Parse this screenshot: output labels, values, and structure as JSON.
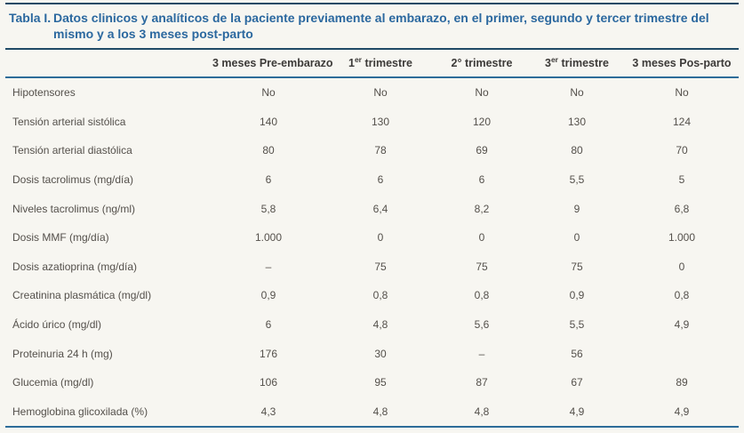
{
  "table": {
    "label": "Tabla I.",
    "title": "Datos clinicos y analíticos de la paciente previamente al embarazo, en el primer, segundo y tercer trimestre del mismo y a los 3 meses post-parto",
    "corner_header": "",
    "columns": [
      {
        "pre": "3 meses Pre-embarazo",
        "sup": "",
        "post": ""
      },
      {
        "pre": "1",
        "sup": "er",
        "post": " trimestre"
      },
      {
        "pre": "2°",
        "sup": "",
        "post": " trimestre"
      },
      {
        "pre": "3",
        "sup": "er",
        "post": " trimestre"
      },
      {
        "pre": "3 meses Pos-parto",
        "sup": "",
        "post": ""
      }
    ],
    "rows": [
      {
        "label": "Hipotensores",
        "values": [
          "No",
          "No",
          "No",
          "No",
          "No"
        ]
      },
      {
        "label": "Tensión arterial sistólica",
        "values": [
          "140",
          "130",
          "120",
          "130",
          "124"
        ]
      },
      {
        "label": "Tensión arterial diastólica",
        "values": [
          "80",
          "78",
          "69",
          "80",
          "70"
        ]
      },
      {
        "label": "Dosis tacrolimus (mg/día)",
        "values": [
          "6",
          "6",
          "6",
          "5,5",
          "5"
        ]
      },
      {
        "label": "Niveles tacrolimus (ng/ml)",
        "values": [
          "5,8",
          "6,4",
          "8,2",
          "9",
          "6,8"
        ]
      },
      {
        "label": "Dosis MMF (mg/día)",
        "values": [
          "1.000",
          "0",
          "0",
          "0",
          "1.000"
        ]
      },
      {
        "label": "Dosis azatioprina (mg/día)",
        "values": [
          "–",
          "75",
          "75",
          "75",
          "0"
        ]
      },
      {
        "label": "Creatinina plasmática (mg/dl)",
        "values": [
          "0,9",
          "0,8",
          "0,8",
          "0,9",
          "0,8"
        ]
      },
      {
        "label": "Ácido úrico (mg/dl)",
        "values": [
          "6",
          "4,8",
          "5,6",
          "5,5",
          "4,9"
        ]
      },
      {
        "label": "Proteinuria 24 h (mg)",
        "values": [
          "176",
          "30",
          "–",
          "56",
          ""
        ]
      },
      {
        "label": "Glucemia (mg/dl)",
        "values": [
          "106",
          "95",
          "87",
          "67",
          "89"
        ]
      },
      {
        "label": "Hemoglobina glicoxilada (%)",
        "values": [
          "4,3",
          "4,8",
          "4,8",
          "4,9",
          "4,9"
        ]
      }
    ]
  },
  "colors": {
    "title_blue": "#2b689f",
    "dark_rule": "#1f4a66",
    "blue_rule": "#2d6c99",
    "body_text": "#54504b",
    "background": "#f7f6f1"
  }
}
